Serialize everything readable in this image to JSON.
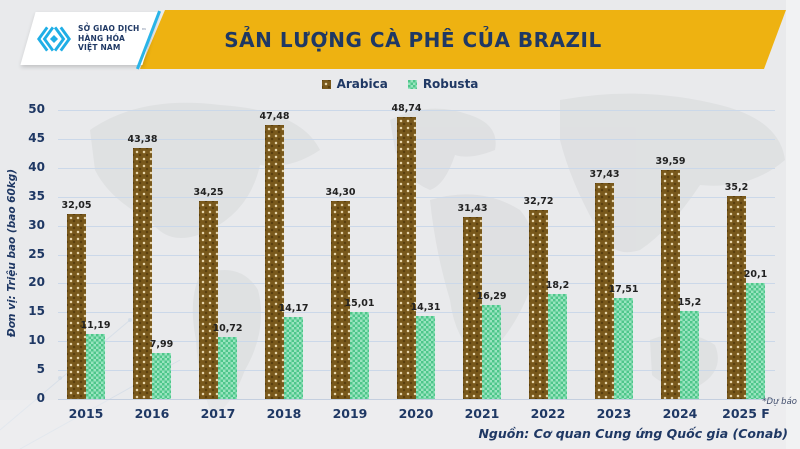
{
  "header": {
    "title": "SẢN LƯỢNG CÀ PHÊ CỦA BRAZIL",
    "logo": {
      "line1": "SỞ GIAO DỊCH",
      "line2": "HÀNG HÓA",
      "line3": "VIỆT NAM",
      "trademark": "™"
    }
  },
  "colors": {
    "banner_gold": "#EEB211",
    "navy_text": "#1F3864",
    "logo_cyan": "#2AB4E8",
    "arabica": "#78581B",
    "robusta": "#55D294",
    "gridline": "#CBD8E9",
    "background": "#E9EAEC"
  },
  "chart_data": {
    "type": "bar",
    "title": "SẢN LƯỢNG CÀ PHÊ CỦA BRAZIL",
    "categories": [
      "2015",
      "2016",
      "2017",
      "2018",
      "2019",
      "2020",
      "2021",
      "2022",
      "2023",
      "2024",
      "2025 F"
    ],
    "series": [
      {
        "name": "Arabica",
        "color": "#78581B",
        "values": [
          32.05,
          43.38,
          34.25,
          47.48,
          34.3,
          48.74,
          31.43,
          32.72,
          37.43,
          39.59,
          35.2
        ],
        "labels": [
          "32,05",
          "43,38",
          "34,25",
          "47,48",
          "34,30",
          "48,74",
          "31,43",
          "32,72",
          "37,43",
          "39,59",
          "35,2"
        ]
      },
      {
        "name": "Robusta",
        "color": "#55D294",
        "values": [
          11.19,
          7.99,
          10.72,
          14.17,
          15.01,
          14.31,
          16.29,
          18.2,
          17.51,
          15.2,
          20.1
        ],
        "labels": [
          "11,19",
          "7,99",
          "10,72",
          "14,17",
          "15,01",
          "14,31",
          "16,29",
          "18,2",
          "17,51",
          "15,2",
          "20,1"
        ]
      }
    ],
    "xlabel": "",
    "ylabel": "Đơn vị: Triệu bao (bao 60kg)",
    "ylim": [
      0,
      50
    ],
    "ytick_step": 5,
    "yticks": [
      0,
      5,
      10,
      15,
      20,
      25,
      30,
      35,
      40,
      45,
      50
    ],
    "grid": true,
    "legend_position": "top"
  },
  "footer": {
    "note": "*Dự báo",
    "source": "Nguồn: Cơ quan Cung ứng Quốc gia (Conab)"
  }
}
